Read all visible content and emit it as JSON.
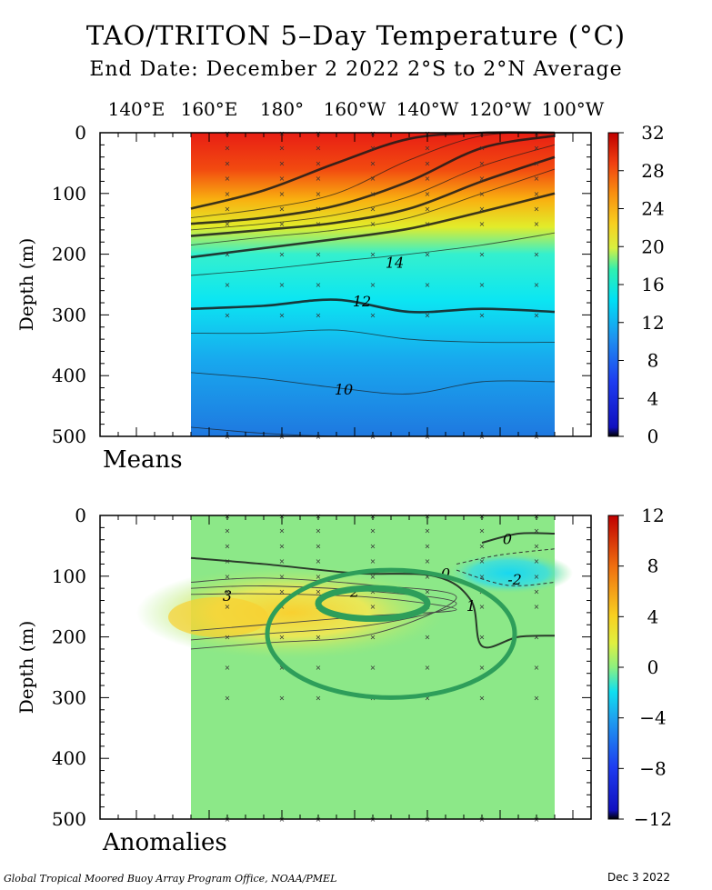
{
  "header": {
    "title": "TAO/TRITON 5–Day Temperature (°C)",
    "subtitle": "End Date: December 2 2022  2°S to 2°N Average"
  },
  "footer": {
    "credit": "Global Tropical Moored Buoy Array Program Office, NOAA/PMEL",
    "date": "Dec  3 2022"
  },
  "chart_data": [
    {
      "type": "heatmap",
      "panel_label": "Means",
      "x_tick_labels": [
        "140°E",
        "160°E",
        "180°",
        "160°W",
        "140°W",
        "120°W",
        "100°W"
      ],
      "x_ticks_deg_east": [
        140,
        160,
        180,
        200,
        220,
        240,
        260
      ],
      "xlim_deg_east": [
        130,
        265
      ],
      "data_xlim_deg_east": [
        155,
        255
      ],
      "ylabel": "Depth (m)",
      "y_ticks": [
        0,
        100,
        200,
        300,
        400,
        500
      ],
      "ylim": [
        0,
        500
      ],
      "y_inverted": true,
      "colorbar": {
        "ticks": [
          0,
          4,
          8,
          12,
          16,
          20,
          24,
          28,
          32
        ],
        "range": [
          0,
          32
        ]
      },
      "contour_labels": [
        {
          "text": "14",
          "lon": 211,
          "depth": 213
        },
        {
          "text": "12",
          "lon": 202,
          "depth": 277
        },
        {
          "text": "10",
          "lon": 197,
          "depth": 422
        }
      ],
      "isotherm_depths": {
        "lons": [
          155,
          175,
          195,
          215,
          235,
          255
        ],
        "contours": [
          {
            "value": 28,
            "depths": [
              125,
              95,
              50,
              10,
              0,
              0
            ]
          },
          {
            "value": 26,
            "depths": [
              140,
              125,
              100,
              45,
              5,
              0
            ]
          },
          {
            "value": 24,
            "depths": [
              150,
              140,
              120,
              80,
              25,
              5
            ]
          },
          {
            "value": 22,
            "depths": [
              160,
              150,
              135,
              105,
              55,
              20
            ]
          },
          {
            "value": 20,
            "depths": [
              170,
              160,
              148,
              125,
              80,
              40
            ]
          },
          {
            "value": 18,
            "depths": [
              185,
              172,
              160,
              140,
              100,
              60
            ]
          },
          {
            "value": 16,
            "depths": [
              205,
              190,
              175,
              158,
              130,
              100
            ]
          },
          {
            "value": 14,
            "depths": [
              235,
              225,
              212,
              200,
              185,
              165
            ]
          },
          {
            "value": 12,
            "depths": [
              290,
              285,
              275,
              295,
              290,
              295
            ]
          },
          {
            "value": 11,
            "depths": [
              330,
              330,
              325,
              340,
              345,
              345
            ]
          },
          {
            "value": 10,
            "depths": [
              395,
              405,
              420,
              430,
              410,
              410
            ]
          },
          {
            "value": 9,
            "depths": [
              485,
              495,
              500,
              500,
              500,
              500
            ]
          }
        ]
      },
      "buoy_lons": [
        165,
        180,
        190,
        205,
        220,
        235,
        250
      ],
      "buoy_depths": [
        1,
        25,
        50,
        75,
        100,
        125,
        150,
        200,
        250,
        300,
        500
      ]
    },
    {
      "type": "heatmap",
      "panel_label": "Anomalies",
      "x_ticks_deg_east": [
        140,
        160,
        180,
        200,
        220,
        240,
        260
      ],
      "xlim_deg_east": [
        130,
        265
      ],
      "data_xlim_deg_east": [
        155,
        255
      ],
      "ylabel": "Depth (m)",
      "y_ticks": [
        0,
        100,
        200,
        300,
        400,
        500
      ],
      "ylim": [
        0,
        500
      ],
      "y_inverted": true,
      "colorbar": {
        "ticks": [
          -12,
          -8,
          -4,
          0,
          4,
          8,
          12
        ],
        "range": [
          -12,
          12
        ]
      },
      "contour_labels": [
        {
          "text": "3",
          "lon": 165,
          "depth": 132
        },
        {
          "text": "2",
          "lon": 200,
          "depth": 125
        },
        {
          "text": "1",
          "lon": 232,
          "depth": 148
        },
        {
          "text": "0",
          "lon": 225,
          "depth": 95
        },
        {
          "text": "0",
          "lon": 242,
          "depth": 38
        },
        {
          "text": "-2",
          "lon": 244,
          "depth": 105
        }
      ],
      "warm_anomaly_core": {
        "lon_range": [
          155,
          230
        ],
        "depth_range": [
          120,
          200
        ],
        "max_anomaly": 3
      },
      "cool_anomaly": {
        "lon_range": [
          225,
          255
        ],
        "depth_range": [
          60,
          130
        ],
        "min_anomaly": -2
      },
      "highlight_ellipses": [
        {
          "role": "annotation",
          "center_lon": 205,
          "center_depth": 145,
          "lon_halfwidth": 15,
          "depth_halfwidth": 25
        },
        {
          "role": "annotation",
          "center_lon": 210,
          "center_depth": 195,
          "lon_halfwidth": 34,
          "depth_halfwidth": 105
        }
      ]
    }
  ]
}
